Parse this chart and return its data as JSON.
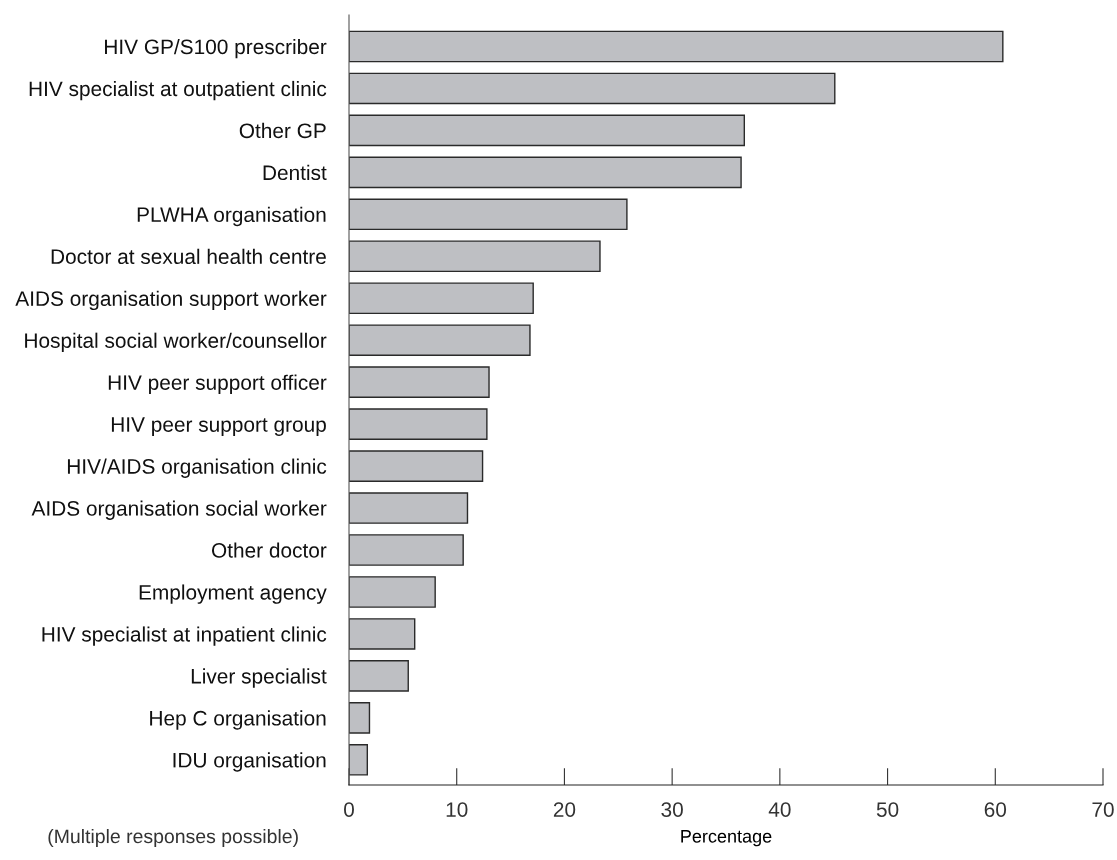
{
  "chart_data": {
    "type": "bar",
    "orientation": "horizontal",
    "xlabel": "Percentage",
    "annotations": [
      "(Multiple responses possible)"
    ],
    "categories": [
      "HIV GP/S100 prescriber",
      "HIV specialist at outpatient clinic",
      "Other GP",
      "Dentist",
      "PLWHA organisation",
      "Doctor at sexual health centre",
      "AIDS organisation support worker",
      "Hospital social worker/counsellor",
      "HIV peer support officer",
      "HIV peer support group",
      "HIV/AIDS organisation clinic",
      "AIDS organisation social worker",
      "Other doctor",
      "Employment agency",
      "HIV specialist at inpatient clinic",
      "Liver specialist",
      "Hep C organisation",
      "IDU organisation"
    ],
    "values": [
      60.7,
      45.1,
      36.7,
      36.4,
      25.8,
      23.3,
      17.1,
      16.8,
      13.0,
      12.8,
      12.4,
      11.0,
      10.6,
      8.0,
      6.1,
      5.5,
      1.9,
      1.7
    ],
    "color": "#bebfc3",
    "xlim": [
      0,
      70
    ],
    "xticks": [
      0,
      10,
      20,
      30,
      40,
      50,
      60,
      70
    ],
    "grid": false,
    "legend": false
  }
}
